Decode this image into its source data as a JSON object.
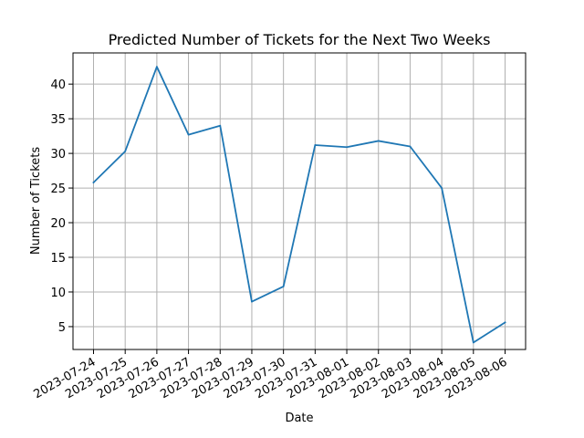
{
  "chart_data": {
    "type": "line",
    "title": "Predicted Number of Tickets for the Next Two Weeks",
    "xlabel": "Date",
    "ylabel": "Number of Tickets",
    "categories": [
      "2023-07-24",
      "2023-07-25",
      "2023-07-26",
      "2023-07-27",
      "2023-07-28",
      "2023-07-29",
      "2023-07-30",
      "2023-07-31",
      "2023-08-01",
      "2023-08-02",
      "2023-08-03",
      "2023-08-04",
      "2023-08-05",
      "2023-08-06"
    ],
    "series": [
      {
        "values": [
          25.8,
          30.3,
          42.5,
          32.7,
          34.0,
          8.6,
          10.8,
          31.2,
          30.9,
          31.8,
          31.0,
          25.0,
          2.7,
          5.6
        ],
        "color": "#1f77b4"
      }
    ],
    "yticks": [
      5,
      10,
      15,
      20,
      25,
      30,
      35,
      40
    ],
    "ylim": [
      1.7,
      44.5
    ],
    "grid": true,
    "legend": "none"
  }
}
